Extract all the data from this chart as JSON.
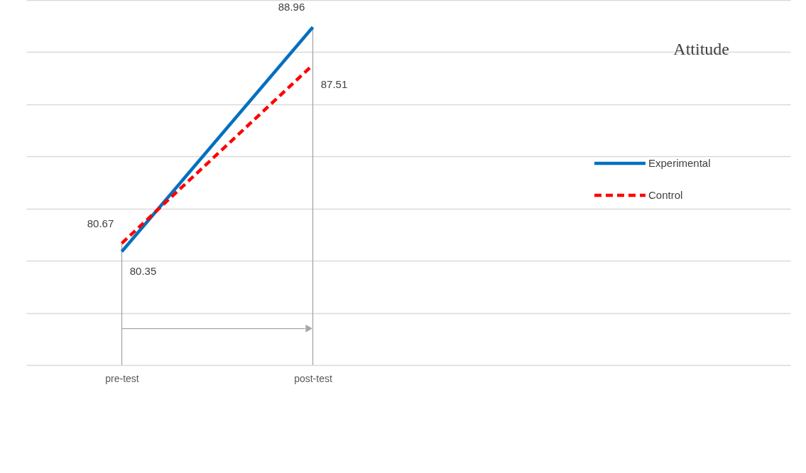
{
  "chart_data": {
    "type": "line",
    "title": "Attitude",
    "categories": [
      "pre-test",
      "post-test"
    ],
    "series": [
      {
        "name": "Experimental",
        "color": "#0070c0",
        "line_style": "solid",
        "values": [
          80.35,
          88.96
        ]
      },
      {
        "name": "Control",
        "color": "#ff0000",
        "line_style": "dashed",
        "values": [
          80.67,
          87.51
        ]
      }
    ],
    "ylim": [
      76,
      90
    ],
    "yticks": [
      {
        "value": 76,
        "label": null
      },
      {
        "value": 78,
        "label": null
      },
      {
        "value": 80,
        "label": null
      },
      {
        "value": 82,
        "label": null
      },
      {
        "value": 84,
        "label": null
      },
      {
        "value": 86,
        "label": null
      },
      {
        "value": 88,
        "label": null
      },
      {
        "value": 90,
        "label": null
      }
    ],
    "ref_lines": [
      {
        "axis": "x",
        "value": "pre-test",
        "color": "#a6a6a6"
      },
      {
        "axis": "x",
        "value": "post-test",
        "color": "#a6a6a6"
      }
    ],
    "grid": "y",
    "legend": "right",
    "marker": "none",
    "data_labels": true,
    "tick_labels": "x"
  }
}
